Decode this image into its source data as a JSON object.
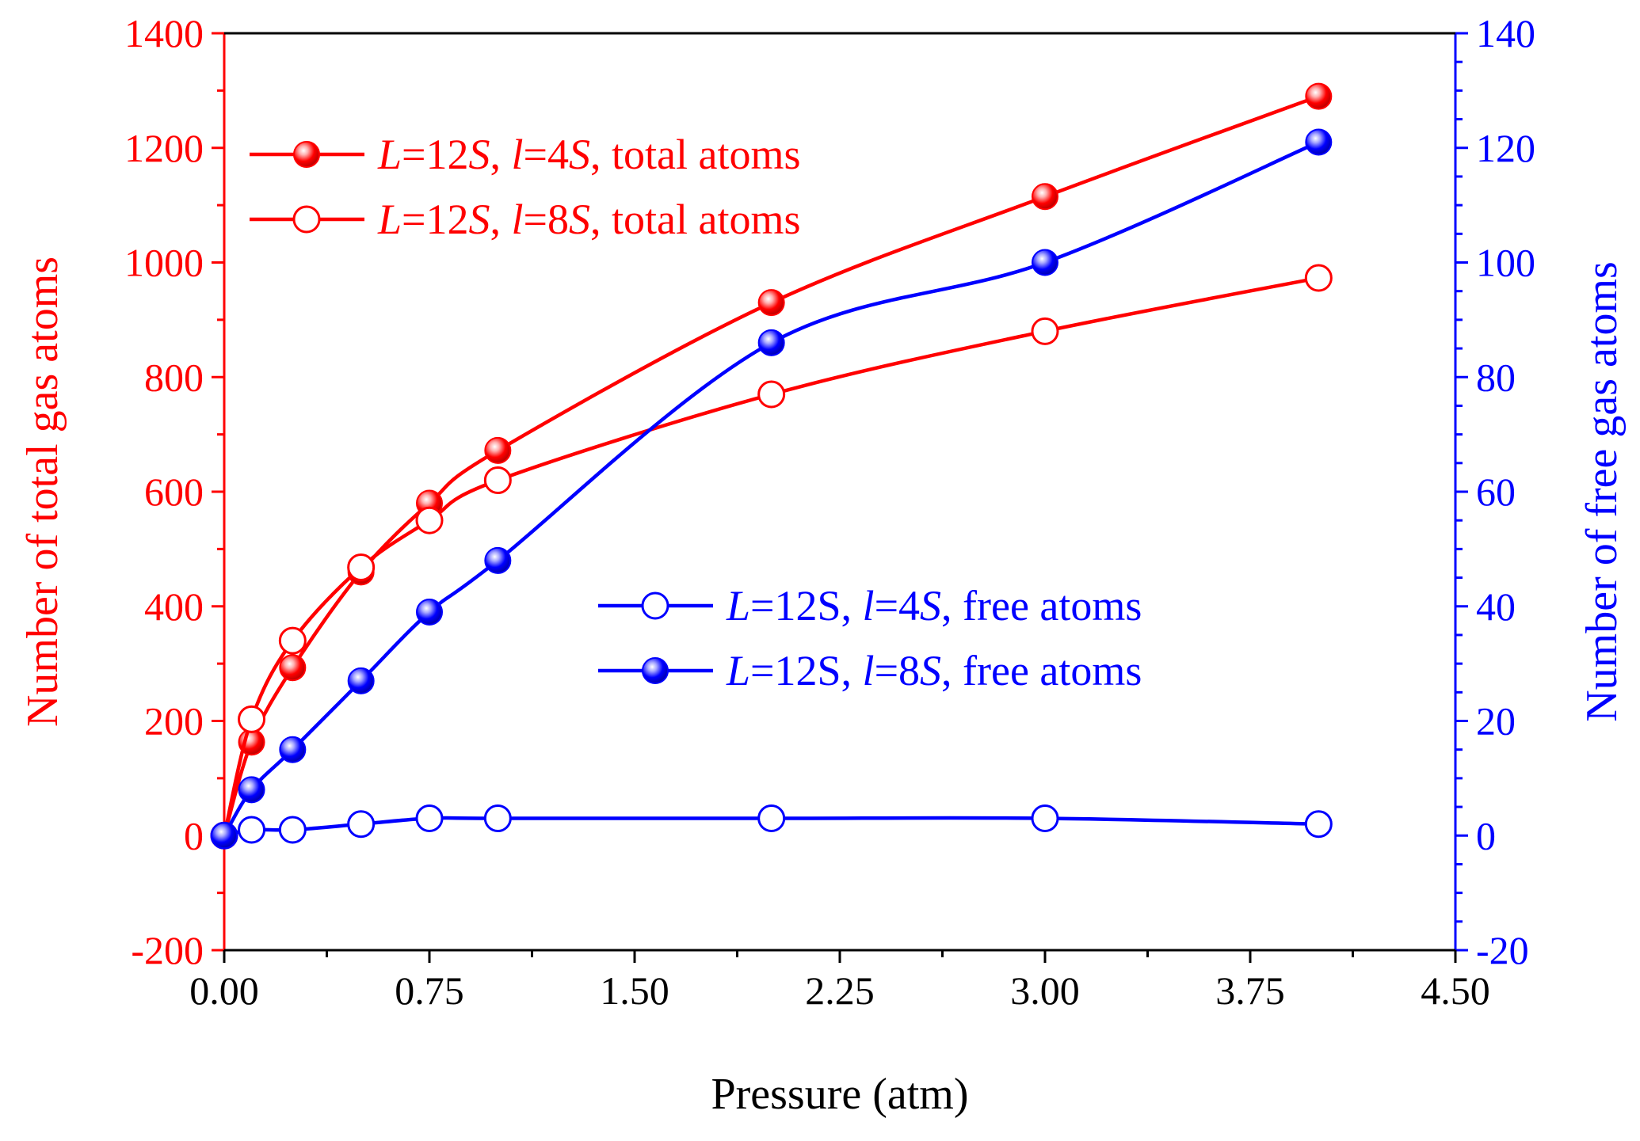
{
  "chart_data": {
    "type": "line",
    "xlabel": "Pressure (atm)",
    "ylabel_left": "Number of total gas atoms",
    "ylabel_right": "Number of free gas atoms",
    "xlim": [
      0,
      4.5
    ],
    "ylim_left": [
      -200,
      1400
    ],
    "ylim_right": [
      -20,
      140
    ],
    "x_ticks": [
      "0.00",
      "0.75",
      "1.50",
      "2.25",
      "3.00",
      "3.75",
      "4.50"
    ],
    "y_ticks_left": [
      "-200",
      "0",
      "200",
      "400",
      "600",
      "800",
      "1000",
      "1200",
      "1400"
    ],
    "y_ticks_right": [
      "-20",
      "0",
      "20",
      "40",
      "60",
      "80",
      "100",
      "120",
      "140"
    ],
    "colors": {
      "left_axis": "#ff0000",
      "right_axis": "#0000ff",
      "x_axis": "#000000"
    },
    "series": [
      {
        "name": "L=12S, l=4S, total atoms",
        "axis": "left",
        "color": "#ff0000",
        "marker": "filled",
        "x": [
          0,
          0.1,
          0.25,
          0.5,
          0.75,
          1.0,
          2.0,
          3.0,
          4.0
        ],
        "y": [
          0,
          163,
          293,
          460,
          580,
          672,
          930,
          1115,
          1290
        ]
      },
      {
        "name": "L=12S, l=8S, total atoms",
        "axis": "left",
        "color": "#ff0000",
        "marker": "open",
        "x": [
          0,
          0.1,
          0.25,
          0.5,
          0.75,
          1.0,
          2.0,
          3.0,
          4.0
        ],
        "y": [
          0,
          203,
          340,
          468,
          550,
          620,
          770,
          880,
          973
        ]
      },
      {
        "name": "L=12S, l=4S, free atoms",
        "axis": "right",
        "color": "#0000ff",
        "marker": "open",
        "x": [
          0,
          0.1,
          0.25,
          0.5,
          0.75,
          1.0,
          2.0,
          3.0,
          4.0
        ],
        "y": [
          0,
          1,
          1,
          2,
          3,
          3,
          3,
          3,
          2
        ]
      },
      {
        "name": "L=12S, l=8S, free atoms",
        "axis": "right",
        "color": "#0000ff",
        "marker": "filled",
        "x": [
          0,
          0.1,
          0.25,
          0.5,
          0.75,
          1.0,
          2.0,
          3.0,
          4.0
        ],
        "y": [
          0,
          8,
          15,
          27,
          39,
          48,
          86,
          100,
          121
        ]
      }
    ],
    "legends": [
      {
        "placement": "top-left",
        "entries": [
          {
            "series": 0,
            "L": "L",
            "eq1": "=12",
            "S1": "S",
            "sep": ", ",
            "l": "l",
            "eq2": "=4",
            "S2": "S",
            "rest": ", total atoms"
          },
          {
            "series": 1,
            "L": "L",
            "eq1": "=12",
            "S1": "S",
            "sep": ", ",
            "l": "l",
            "eq2": "=8",
            "S2": "S",
            "rest": ", total atoms"
          }
        ]
      },
      {
        "placement": "center-right",
        "entries": [
          {
            "series": 2,
            "L": "L",
            "eq1": "=12S",
            "S1": "",
            "sep": ", ",
            "l": "l",
            "eq2": "=4",
            "S2": "S",
            "rest": ", free atoms"
          },
          {
            "series": 3,
            "L": "L",
            "eq1": "=12S",
            "S1": "",
            "sep": ", ",
            "l": "l",
            "eq2": "=8",
            "S2": "S",
            "rest": ", free atoms"
          }
        ]
      }
    ]
  }
}
